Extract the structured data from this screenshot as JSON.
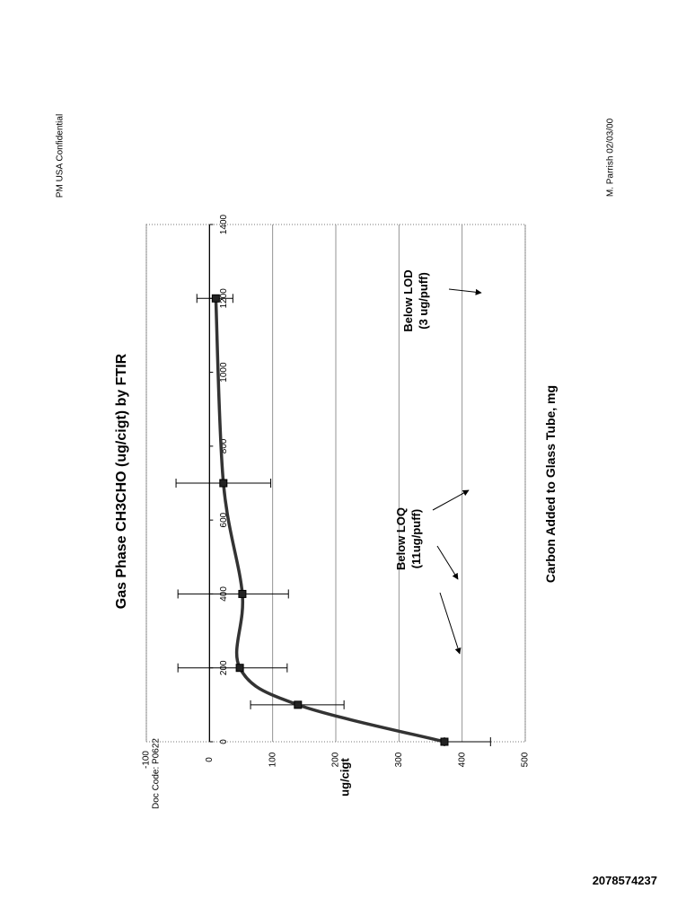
{
  "header": {
    "confidential": "PM USA  Confidential",
    "author_date": "M. Parrish  02/03/00"
  },
  "footer": {
    "doc_code": "Doc Code:  P0622",
    "document_number": "2078574237"
  },
  "chart_data": {
    "type": "line",
    "title": "Gas Phase CH3CHO (ug/cigt) by FTIR",
    "xlabel": "Carbon Added to Glass Tube, mg",
    "ylabel": "ug/cigt",
    "xlim": [
      0,
      1400
    ],
    "ylim": [
      -100,
      500
    ],
    "x_ticks": [
      "0",
      "200",
      "400",
      "600",
      "800",
      "1000",
      "1200",
      "1400"
    ],
    "y_ticks": [
      "-100",
      "0",
      "100",
      "200",
      "300",
      "400",
      "500"
    ],
    "grid": "horizontal",
    "series": [
      {
        "x": [
          0,
          100,
          200,
          400,
          700,
          1200
        ],
        "y": [
          372,
          140,
          48,
          52,
          22,
          10
        ],
        "error_low": [
          372,
          65,
          -50,
          -50,
          -53,
          -20
        ],
        "error_high": [
          445,
          213,
          123,
          125,
          97,
          37
        ]
      }
    ],
    "annotations": [
      {
        "line1": "Below LOQ",
        "line2": "(11ug/puff)"
      },
      {
        "line1": "Below LOD",
        "line2": "(3 ug/puff)"
      }
    ]
  }
}
